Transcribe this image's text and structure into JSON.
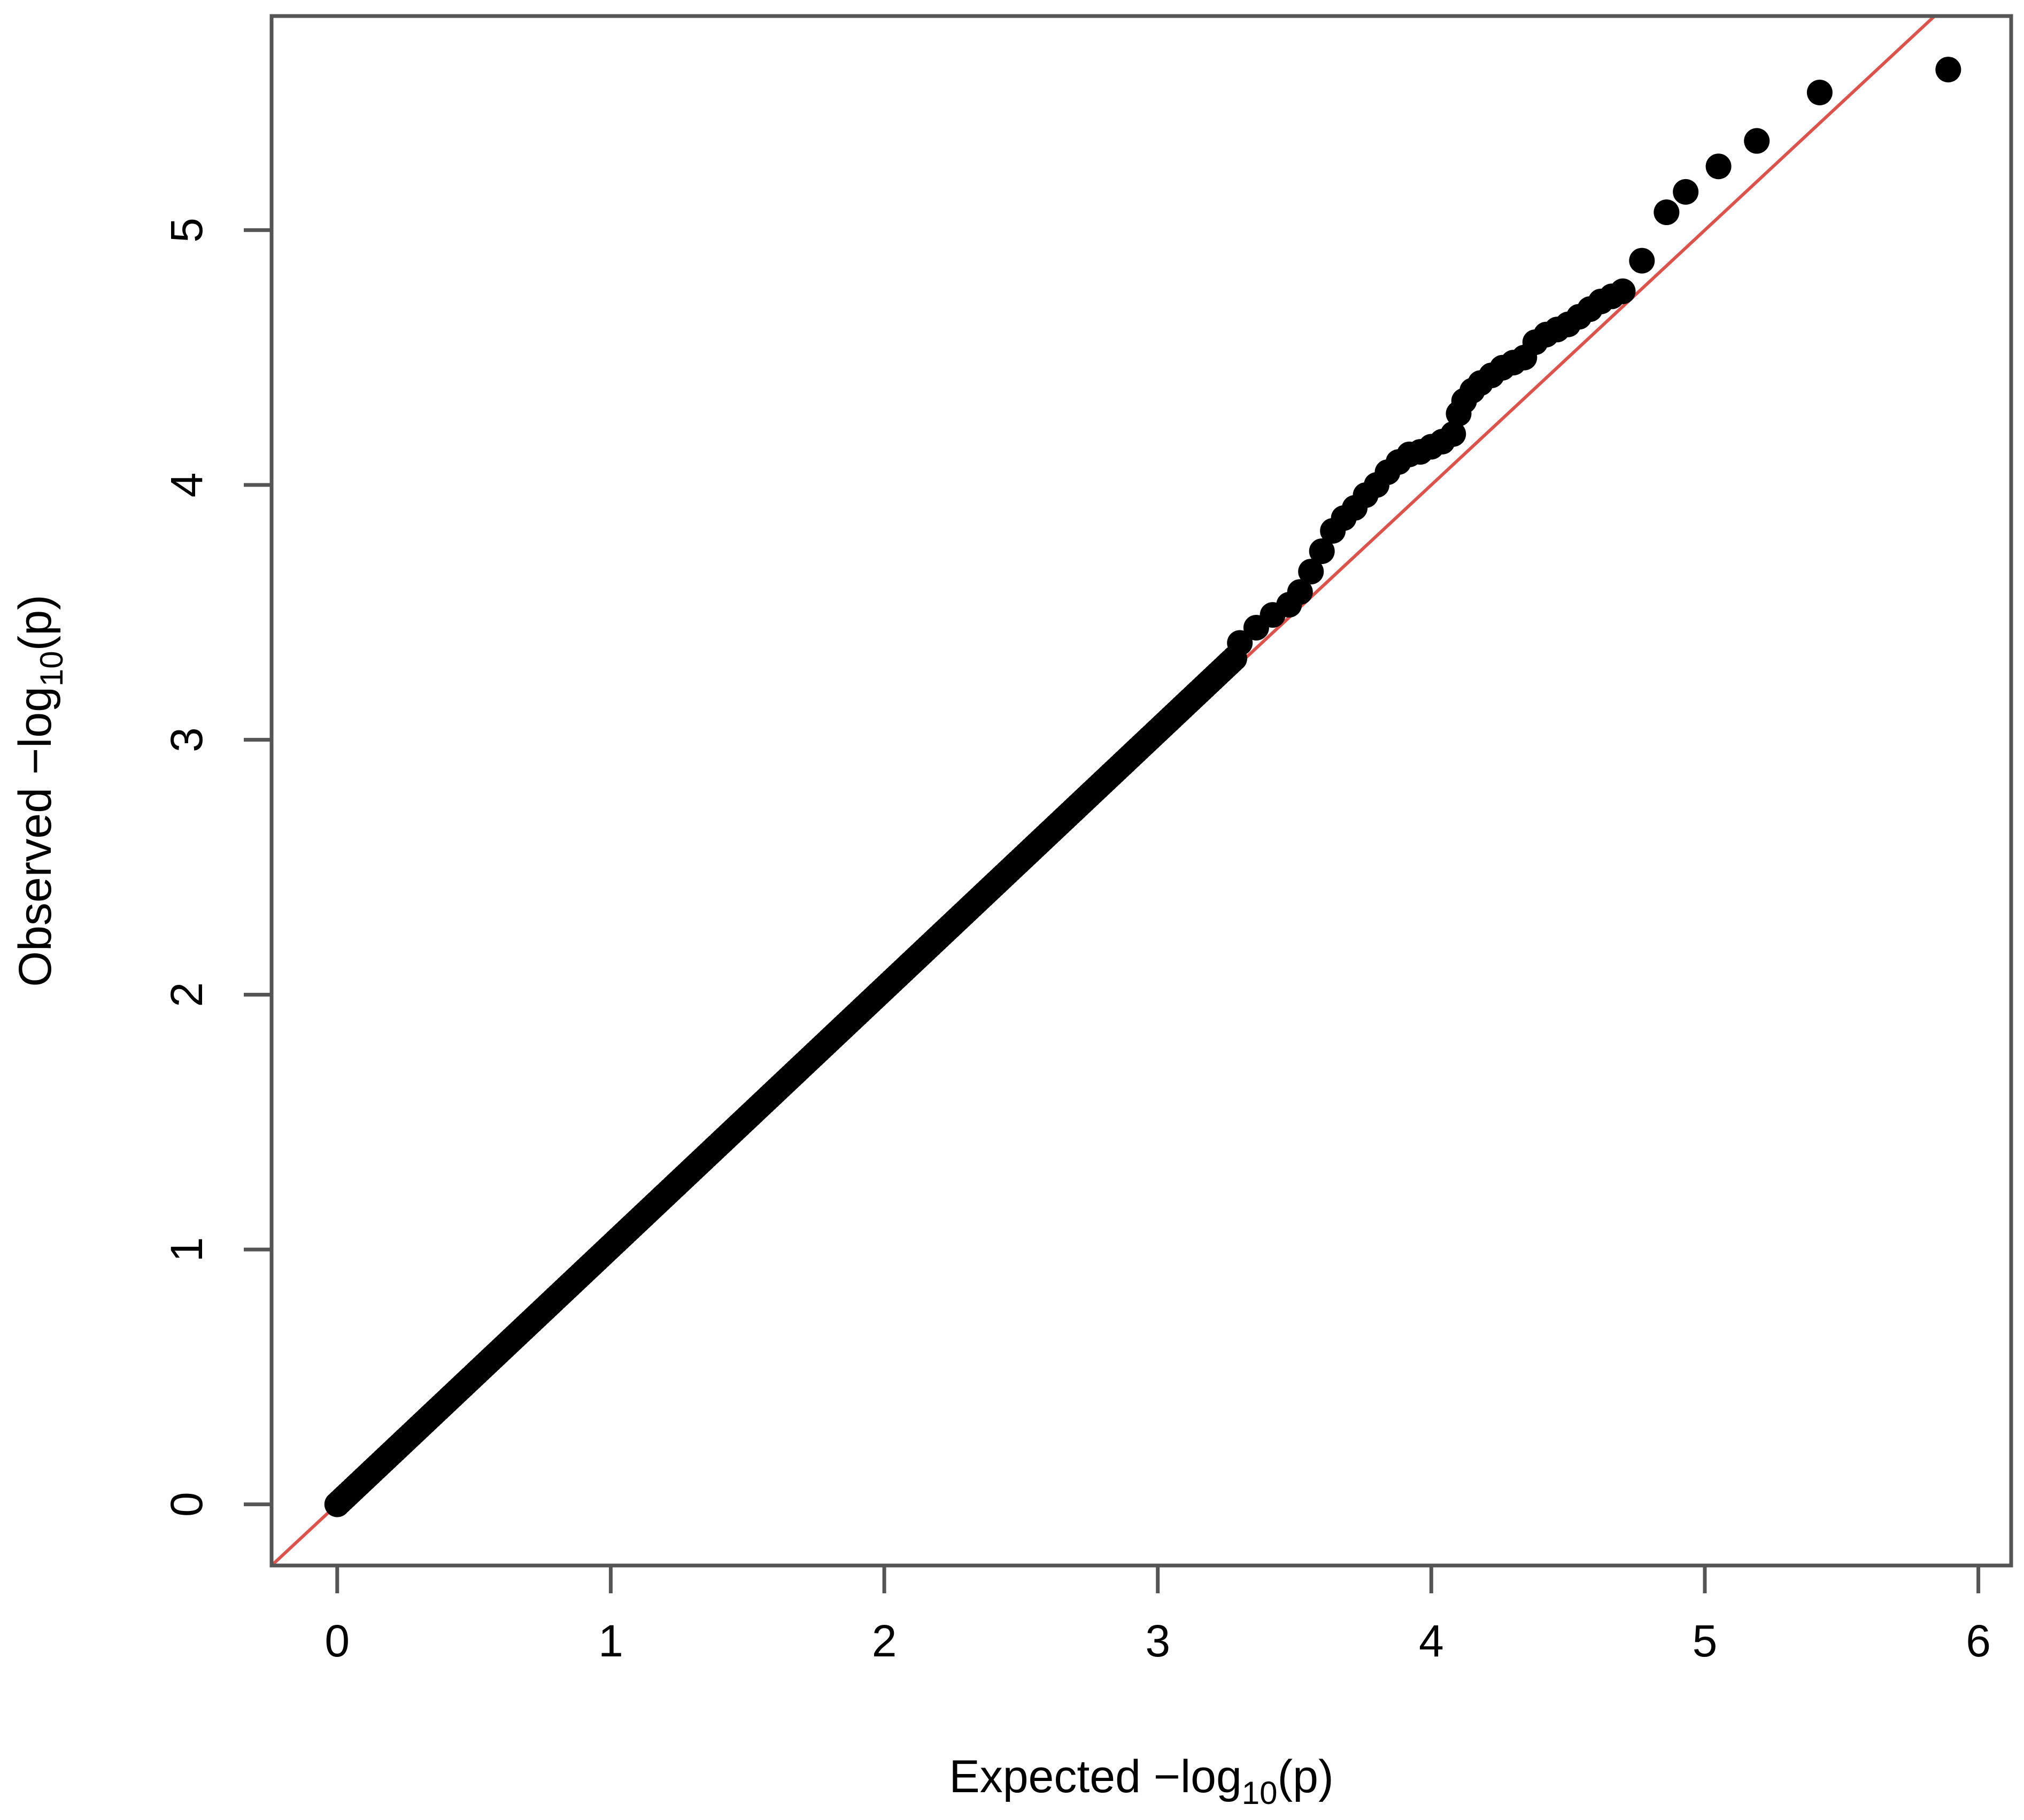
{
  "chart_data": {
    "type": "scatter",
    "title": "",
    "xlabel": {
      "prefix": "Expected  −log",
      "sub": "10",
      "suffix": "(p)"
    },
    "ylabel": {
      "prefix": "Observed  −log",
      "sub": "10",
      "suffix": "(p)"
    },
    "xlim": [
      -0.24,
      6.12
    ],
    "ylim": [
      -0.24,
      5.84
    ],
    "x_ticks": [
      0,
      1,
      2,
      3,
      4,
      5,
      6
    ],
    "x_tick_labels": [
      "0",
      "1",
      "2",
      "3",
      "4",
      "5",
      "6"
    ],
    "y_ticks": [
      0,
      1,
      2,
      3,
      4,
      5
    ],
    "y_tick_labels": [
      "0",
      "1",
      "2",
      "3",
      "4",
      "5"
    ],
    "grid": false,
    "point_color": "#000000",
    "reference_line": {
      "slope": 1,
      "intercept": 0,
      "color": "#d9544d"
    },
    "points": {
      "x": [
        3.3,
        3.36,
        3.42,
        3.48,
        3.52,
        3.56,
        3.6,
        3.64,
        3.68,
        3.72,
        3.76,
        3.8,
        3.84,
        3.88,
        3.92,
        3.96,
        4.0,
        4.04,
        4.08,
        4.1,
        4.12,
        4.15,
        4.18,
        4.22,
        4.26,
        4.3,
        4.34,
        4.38,
        4.42,
        4.46,
        4.5,
        4.54,
        4.58,
        4.62,
        4.66,
        4.7,
        4.77,
        4.86,
        4.93,
        5.05,
        5.19,
        5.42,
        5.89
      ],
      "y": [
        3.38,
        3.44,
        3.49,
        3.53,
        3.58,
        3.66,
        3.74,
        3.82,
        3.87,
        3.91,
        3.96,
        4.0,
        4.05,
        4.09,
        4.12,
        4.13,
        4.15,
        4.17,
        4.2,
        4.28,
        4.33,
        4.37,
        4.4,
        4.43,
        4.46,
        4.48,
        4.5,
        4.56,
        4.59,
        4.61,
        4.63,
        4.66,
        4.69,
        4.72,
        4.74,
        4.76,
        4.88,
        5.07,
        5.15,
        5.25,
        5.35,
        5.54,
        5.63
      ]
    }
  }
}
